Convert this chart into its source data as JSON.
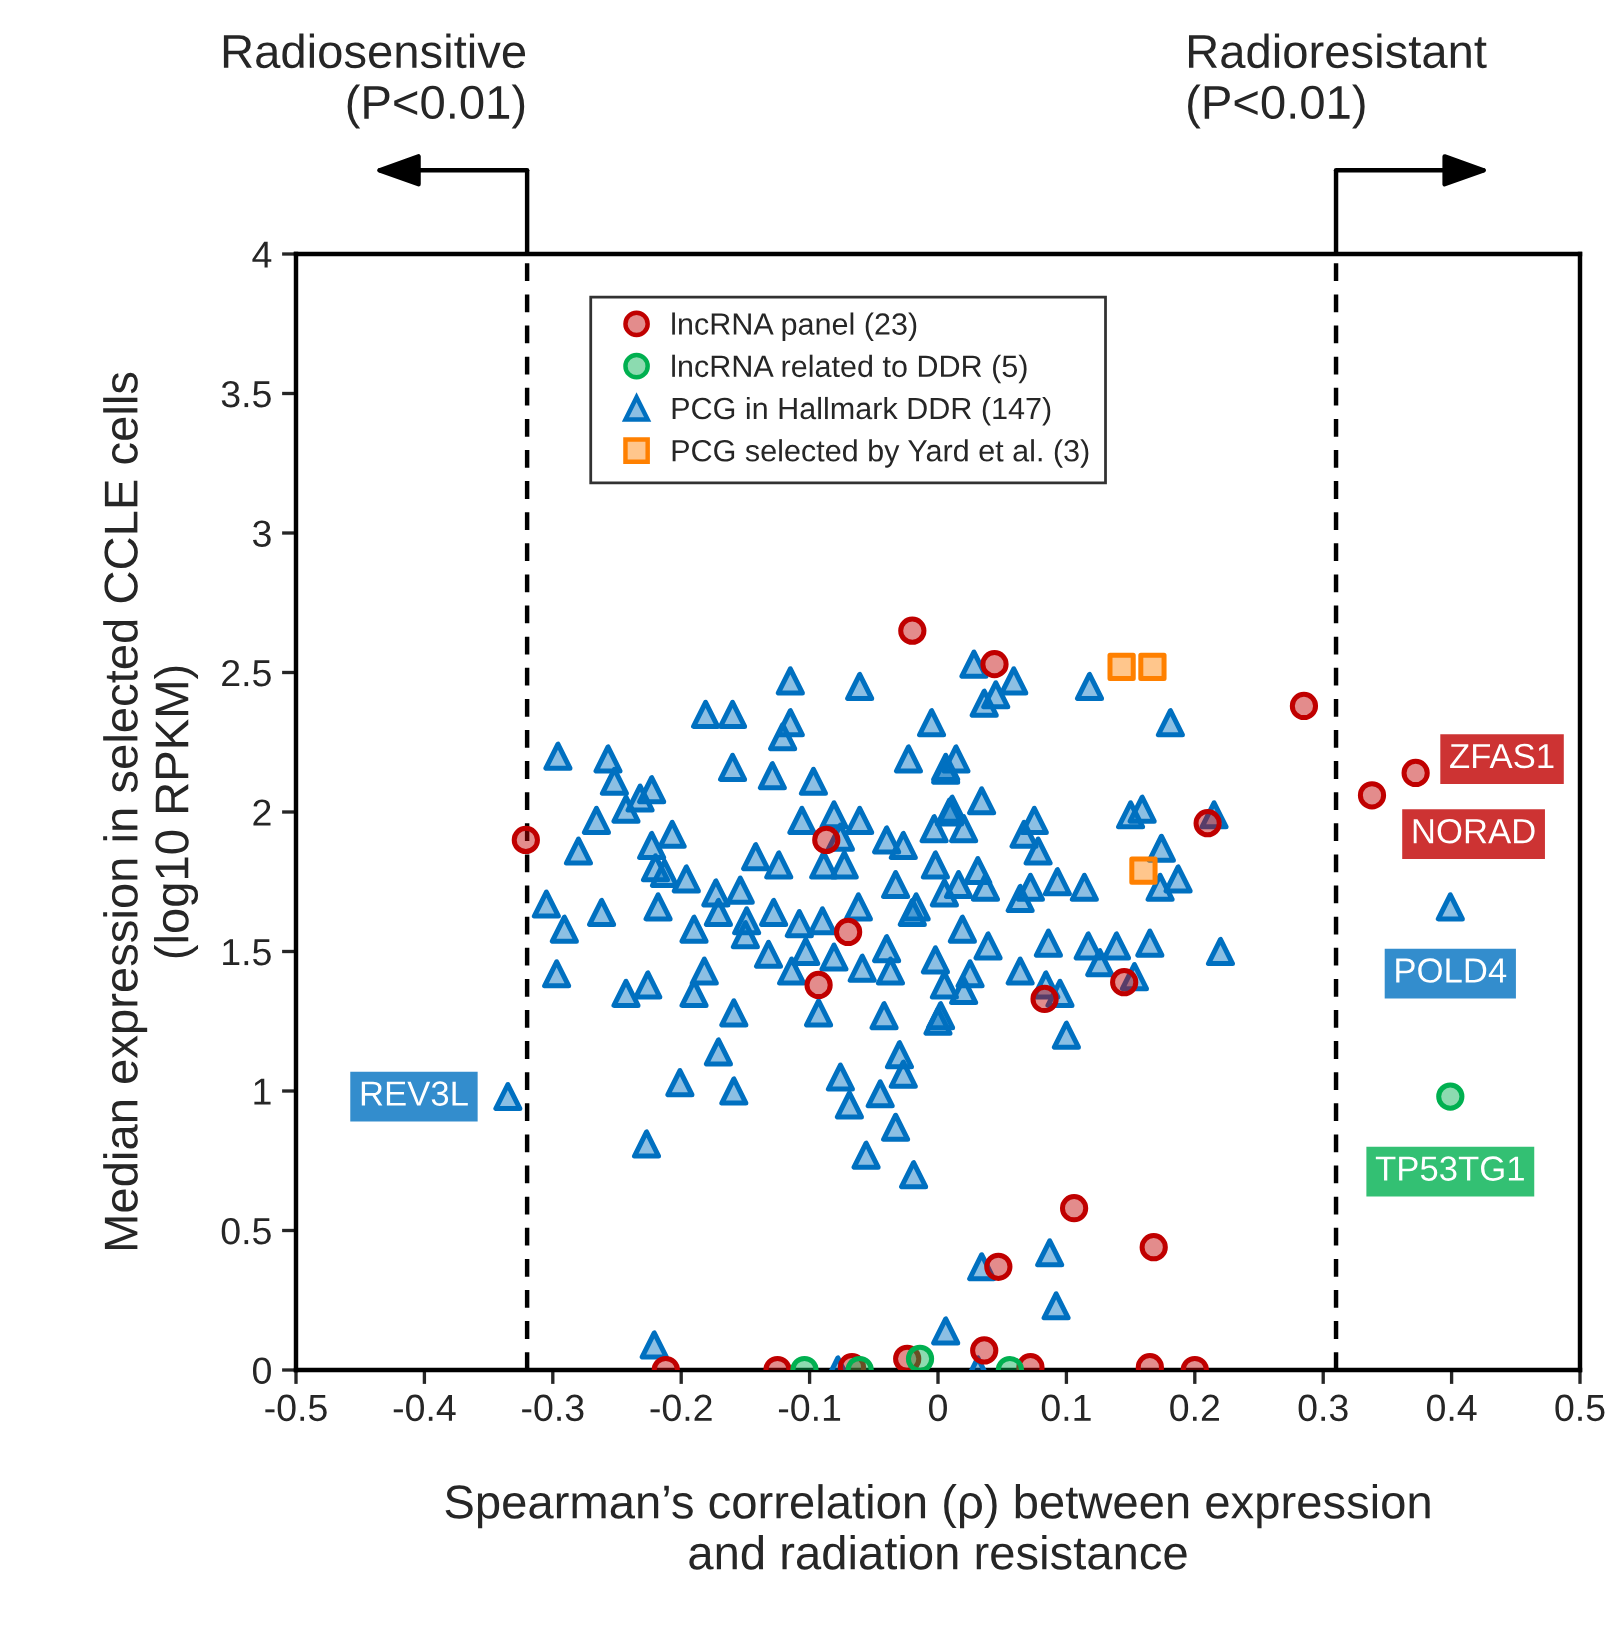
{
  "chart_data": {
    "type": "scatter",
    "xlabel": "Spearman’s correlation (ρ) between expression\nand radiation resistance",
    "ylabel": "Median expression in selected CCLE cells\n(log10 RPKM)",
    "xlim": [
      -0.5,
      0.5
    ],
    "xticks": [
      -0.5,
      -0.4,
      -0.3,
      -0.2,
      -0.1,
      0,
      0.1,
      0.2,
      0.3,
      0.4,
      0.5
    ],
    "ylim": [
      0,
      4
    ],
    "yticks": [
      0,
      0.5,
      1,
      1.5,
      2,
      2.5,
      3,
      3.5,
      4
    ],
    "grid": false,
    "legend": "top",
    "ref_lines": [
      {
        "axis": "x",
        "value": -0.32,
        "label": "Radiosensitive\n(P<0.01)",
        "line_style": "dashed",
        "color": "#000000"
      },
      {
        "axis": "x",
        "value": 0.31,
        "label": "Radioresistant\n(P<0.01)",
        "line_style": "dashed",
        "color": "#000000"
      }
    ],
    "annotations": [
      {
        "text": "ZFAS1",
        "x": 0.372,
        "y": 2.14
      },
      {
        "text": "NORAD",
        "x": 0.338,
        "y": 2.06
      },
      {
        "text": "POLD4",
        "x": 0.399,
        "y": 1.66
      },
      {
        "text": "REV3L",
        "x": -0.335,
        "y": 0.98
      },
      {
        "text": "TP53TG1",
        "x": 0.399,
        "y": 0.98
      }
    ],
    "series": [
      {
        "name": "PCG in Hallmark DDR (147)",
        "color": "#0070c0",
        "marker": "triangle",
        "x": [
          -0.115,
          -0.061,
          -0.181,
          -0.16,
          -0.115,
          -0.121,
          -0.005,
          -0.296,
          -0.257,
          -0.16,
          -0.129,
          -0.023,
          -0.252,
          -0.097,
          -0.223,
          -0.232,
          -0.243,
          0.006,
          -0.266,
          -0.106,
          -0.081,
          -0.061,
          0.009,
          -0.207,
          -0.223,
          -0.28,
          -0.076,
          -0.04,
          -0.027,
          -0.003,
          -0.22,
          -0.213,
          -0.142,
          -0.124,
          -0.089,
          -0.073,
          -0.196,
          -0.173,
          -0.154,
          -0.033,
          -0.002,
          -0.305,
          -0.262,
          -0.218,
          -0.291,
          -0.171,
          -0.149,
          -0.128,
          -0.108,
          -0.09,
          -0.062,
          -0.017,
          0.005,
          -0.19,
          -0.15,
          -0.132,
          -0.103,
          -0.081,
          -0.059,
          -0.04,
          -0.037,
          -0.002,
          -0.297,
          -0.243,
          -0.226,
          -0.19,
          -0.182,
          -0.114,
          0.005,
          -0.159,
          -0.093,
          -0.042,
          0.002,
          -0.335,
          -0.227,
          -0.171,
          -0.201,
          -0.159,
          -0.076,
          -0.045,
          -0.069,
          -0.027,
          -0.056,
          -0.033,
          -0.019,
          -0.221,
          0.006,
          -0.078,
          0.1,
          0.0,
          -0.03,
          0.087,
          0.034,
          0.092,
          0.031,
          0.028,
          0.059,
          0.118,
          0.045,
          0.036,
          0.181,
          0.014,
          0.006,
          0.034,
          0.011,
          0.159,
          0.15,
          0.215,
          0.02,
          0.075,
          0.067,
          0.174,
          0.078,
          0.031,
          0.016,
          0.037,
          0.093,
          0.114,
          0.173,
          0.187,
          0.072,
          0.064,
          -0.02,
          0.019,
          0.039,
          0.086,
          0.117,
          0.139,
          0.165,
          0.22,
          0.064,
          0.126,
          0.025,
          0.153,
          0.02,
          0.084,
          0.095,
          0.399
        ],
        "values": [
          2.47,
          2.45,
          2.35,
          2.35,
          2.32,
          2.27,
          2.32,
          2.2,
          2.19,
          2.16,
          2.13,
          2.19,
          2.11,
          2.11,
          2.08,
          2.05,
          2.01,
          2.15,
          1.97,
          1.97,
          1.99,
          1.97,
          2.0,
          1.92,
          1.88,
          1.86,
          1.91,
          1.9,
          1.88,
          1.94,
          1.8,
          1.78,
          1.84,
          1.81,
          1.81,
          1.81,
          1.76,
          1.71,
          1.72,
          1.74,
          1.81,
          1.67,
          1.64,
          1.66,
          1.58,
          1.64,
          1.61,
          1.64,
          1.6,
          1.61,
          1.66,
          1.66,
          1.71,
          1.58,
          1.56,
          1.49,
          1.5,
          1.48,
          1.44,
          1.51,
          1.43,
          1.47,
          1.42,
          1.35,
          1.38,
          1.35,
          1.43,
          1.43,
          1.38,
          1.28,
          1.28,
          1.27,
          1.27,
          0.98,
          0.81,
          1.14,
          1.03,
          1.0,
          1.05,
          0.99,
          0.95,
          1.06,
          0.77,
          0.87,
          0.7,
          0.09,
          0.14,
          0.0,
          1.2,
          1.25,
          1.13,
          0.42,
          0.37,
          0.23,
          0.0,
          2.53,
          2.47,
          2.45,
          2.42,
          2.39,
          2.32,
          2.19,
          2.16,
          2.04,
          2.01,
          2.01,
          1.99,
          1.99,
          1.94,
          1.97,
          1.92,
          1.87,
          1.86,
          1.79,
          1.74,
          1.73,
          1.75,
          1.73,
          1.73,
          1.76,
          1.73,
          1.69,
          1.64,
          1.58,
          1.52,
          1.53,
          1.52,
          1.52,
          1.53,
          1.5,
          1.43,
          1.46,
          1.42,
          1.41,
          1.36,
          1.38,
          1.35,
          1.66
        ]
      },
      {
        "name": "lncRNA panel (23)",
        "color": "#c00000",
        "marker": "circle",
        "x": [
          -0.321,
          -0.02,
          0.044,
          0.285,
          0.372,
          0.338,
          0.21,
          -0.087,
          -0.07,
          -0.093,
          0.083,
          0.145,
          0.106,
          0.168,
          0.047,
          0.036,
          -0.024,
          0.072,
          0.165,
          0.2,
          -0.212,
          -0.125,
          -0.067
        ],
        "values": [
          1.9,
          2.65,
          2.53,
          2.38,
          2.14,
          2.06,
          1.96,
          1.9,
          1.57,
          1.38,
          1.33,
          1.39,
          0.58,
          0.44,
          0.37,
          0.07,
          0.04,
          0.01,
          0.01,
          0.0,
          0.0,
          0.0,
          0.01
        ]
      },
      {
        "name": "lncRNA related to DDR (5)",
        "color": "#00b050",
        "marker": "circle",
        "x": [
          0.399,
          -0.104,
          -0.061,
          -0.014,
          0.056
        ],
        "values": [
          0.98,
          0.0,
          0.0,
          0.04,
          0.0
        ]
      },
      {
        "name": "PCG selected by Yard et al. (3)",
        "color": "#ff8000",
        "marker": "square",
        "x": [
          0.143,
          0.167,
          0.16
        ],
        "values": [
          2.52,
          2.52,
          1.79
        ]
      }
    ]
  }
}
